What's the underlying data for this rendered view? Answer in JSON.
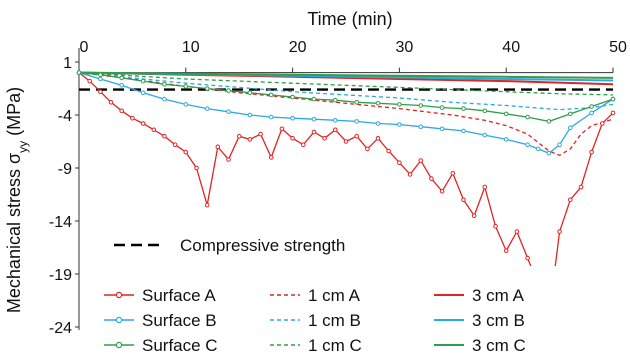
{
  "chart_data": {
    "type": "line",
    "xlabel": "Time (min)",
    "ylabel": "Mechanical stress σyy (MPa)",
    "xlim": [
      0,
      50
    ],
    "ylim": [
      -24,
      1
    ],
    "x_ticks": [
      "0",
      "10",
      "20",
      "30",
      "40",
      "50"
    ],
    "y_ticks": [
      "1",
      "-4",
      "-9",
      "-14",
      "-19",
      "-24"
    ],
    "x_axis_position": "top",
    "grid": false,
    "reference_line": {
      "name": "Compressive strength",
      "y": -1.6,
      "color": "#000000",
      "style": "dashed"
    },
    "series": [
      {
        "name": "Surface A",
        "color": "#e02424",
        "style": "solid-markers",
        "x": [
          0,
          1,
          2,
          3,
          4,
          5,
          6,
          7,
          8,
          9,
          10,
          11,
          12,
          13,
          14,
          15,
          16,
          17,
          18,
          19,
          20,
          21,
          22,
          23,
          24,
          25,
          26,
          27,
          28,
          29,
          30,
          31,
          32,
          33,
          34,
          35,
          36,
          37,
          38,
          39,
          40,
          41,
          42,
          43,
          44,
          45,
          46,
          47,
          48,
          49,
          50
        ],
        "y": [
          0,
          -0.8,
          -1.8,
          -2.8,
          -3.6,
          -4.3,
          -4.8,
          -5.4,
          -6.0,
          -6.8,
          -7.5,
          -9.0,
          -12.5,
          -7.0,
          -8.2,
          -6.0,
          -6.3,
          -5.8,
          -8.0,
          -5.3,
          -6.2,
          -6.8,
          -5.6,
          -6.2,
          -5.4,
          -6.5,
          -6.0,
          -7.2,
          -6.2,
          -7.4,
          -8.5,
          -9.6,
          -8.3,
          -10.0,
          -11.2,
          -9.5,
          -12.0,
          -13.5,
          -10.8,
          -14.5,
          -16.8,
          -15.0,
          -17.5,
          -20.0,
          -23.0,
          -15.0,
          -12.0,
          -10.8,
          -7.5,
          -4.8,
          -3.8
        ]
      },
      {
        "name": "Surface B",
        "color": "#2aaae2",
        "style": "solid-markers",
        "x": [
          0,
          2,
          4,
          6,
          8,
          10,
          12,
          14,
          16,
          18,
          20,
          22,
          24,
          26,
          28,
          30,
          32,
          34,
          36,
          38,
          40,
          42,
          43,
          44,
          45,
          46,
          48,
          50
        ],
        "y": [
          0,
          -0.6,
          -1.2,
          -1.9,
          -2.5,
          -3.0,
          -3.4,
          -3.7,
          -4.0,
          -4.2,
          -4.3,
          -4.4,
          -4.5,
          -4.6,
          -4.8,
          -4.9,
          -5.1,
          -5.3,
          -5.5,
          -5.9,
          -6.3,
          -6.8,
          -7.2,
          -7.6,
          -6.8,
          -5.2,
          -3.8,
          -2.5
        ]
      },
      {
        "name": "Surface C",
        "color": "#2e9e48",
        "style": "solid-markers",
        "x": [
          0,
          2,
          4,
          6,
          8,
          10,
          12,
          14,
          16,
          18,
          20,
          22,
          24,
          26,
          28,
          30,
          32,
          34,
          36,
          38,
          40,
          42,
          44,
          46,
          48,
          50
        ],
        "y": [
          0,
          -0.2,
          -0.5,
          -0.8,
          -1.1,
          -1.3,
          -1.5,
          -1.7,
          -1.9,
          -2.1,
          -2.3,
          -2.5,
          -2.6,
          -2.8,
          -2.9,
          -3.0,
          -3.1,
          -3.3,
          -3.4,
          -3.6,
          -3.9,
          -4.2,
          -4.6,
          -3.9,
          -3.2,
          -2.5
        ]
      },
      {
        "name": "1 cm A",
        "color": "#e02424",
        "style": "dashed",
        "x": [
          0,
          5,
          10,
          15,
          20,
          25,
          30,
          35,
          38,
          40,
          42,
          44,
          45,
          46,
          47,
          48,
          50
        ],
        "y": [
          0,
          -0.6,
          -1.3,
          -1.9,
          -2.4,
          -2.9,
          -3.4,
          -4.0,
          -4.5,
          -5.0,
          -5.8,
          -7.4,
          -7.8,
          -7.2,
          -5.8,
          -5.0,
          -4.4
        ]
      },
      {
        "name": "1 cm B",
        "color": "#2aaae2",
        "style": "dashed",
        "x": [
          0,
          5,
          10,
          15,
          20,
          25,
          30,
          35,
          40,
          45,
          48,
          50
        ],
        "y": [
          0,
          -0.5,
          -1.0,
          -1.4,
          -1.8,
          -2.1,
          -2.4,
          -2.8,
          -3.1,
          -3.5,
          -3.3,
          -3.0
        ]
      },
      {
        "name": "1 cm C",
        "color": "#2e9e48",
        "style": "dashed",
        "x": [
          0,
          5,
          10,
          15,
          20,
          25,
          30,
          35,
          40,
          45,
          50
        ],
        "y": [
          0,
          -0.3,
          -0.6,
          -0.8,
          -1.0,
          -1.2,
          -1.4,
          -1.6,
          -1.8,
          -2.0,
          -2.1
        ]
      },
      {
        "name": "3 cm A",
        "color": "#e02424",
        "style": "solid",
        "x": [
          0,
          10,
          20,
          30,
          40,
          50
        ],
        "y": [
          0,
          -0.2,
          -0.4,
          -0.6,
          -0.8,
          -1.1
        ]
      },
      {
        "name": "3 cm B",
        "color": "#2aaae2",
        "style": "solid",
        "x": [
          0,
          10,
          20,
          30,
          40,
          50
        ],
        "y": [
          0,
          -0.15,
          -0.3,
          -0.45,
          -0.6,
          -0.75
        ]
      },
      {
        "name": "3 cm C",
        "color": "#2e9e48",
        "style": "solid",
        "x": [
          0,
          10,
          20,
          30,
          40,
          50
        ],
        "y": [
          0,
          -0.1,
          -0.2,
          -0.3,
          -0.4,
          -0.5
        ]
      }
    ],
    "legend": {
      "placement": "bottom-left",
      "columns": [
        [
          "Surface A",
          "Surface B",
          "Surface C"
        ],
        [
          "1 cm A",
          "1 cm B",
          "1 cm C"
        ],
        [
          "3 cm A",
          "3 cm B",
          "3 cm C"
        ]
      ]
    }
  }
}
